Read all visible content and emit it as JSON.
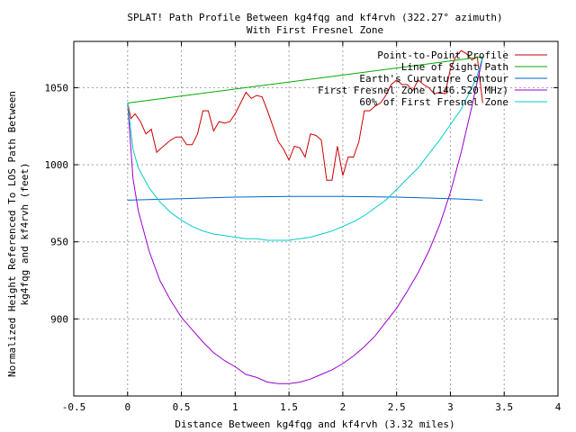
{
  "chart_data": {
    "type": "line",
    "title": "SPLAT! Path Profile Between kg4fqg and kf4rvh (322.27° azimuth)",
    "subtitle": "With First Fresnel Zone",
    "xlabel": "Distance Between kg4fqg and kf4rvh (3.32 miles)",
    "ylabel_line1": "Normalized Height Referenced To LOS Path Between",
    "ylabel_line2": "kg4fqg and kf4rvh (feet)",
    "xlim": [
      -0.5,
      4
    ],
    "ylim": [
      850,
      1080
    ],
    "x_ticks": [
      -0.5,
      0,
      0.5,
      1,
      1.5,
      2,
      2.5,
      3,
      3.5,
      4
    ],
    "x_tick_labels": [
      "-0.5",
      "0",
      "0.5",
      "1",
      "1.5",
      "2",
      "2.5",
      "3",
      "3.5",
      "4"
    ],
    "y_ticks": [
      900,
      950,
      1000,
      1050
    ],
    "y_tick_labels": [
      "900",
      "950",
      "1000",
      "1050"
    ],
    "grid": true,
    "legend_position": "top-right",
    "series": [
      {
        "name": "Point-to-Point Profile",
        "color": "#cc0000",
        "x": [
          0,
          0.03,
          0.07,
          0.12,
          0.17,
          0.22,
          0.27,
          0.3,
          0.35,
          0.4,
          0.45,
          0.5,
          0.55,
          0.6,
          0.65,
          0.7,
          0.75,
          0.8,
          0.85,
          0.9,
          0.95,
          1.0,
          1.05,
          1.1,
          1.15,
          1.2,
          1.25,
          1.3,
          1.35,
          1.4,
          1.45,
          1.5,
          1.55,
          1.6,
          1.65,
          1.7,
          1.75,
          1.8,
          1.85,
          1.9,
          1.95,
          2.0,
          2.05,
          2.1,
          2.15,
          2.2,
          2.25,
          2.3,
          2.35,
          2.4,
          2.45,
          2.5,
          2.55,
          2.6,
          2.65,
          2.7,
          2.75,
          2.8,
          2.85,
          2.9,
          2.95,
          3.0,
          3.05,
          3.1,
          3.15,
          3.2,
          3.25,
          3.3
        ],
        "y": [
          1040,
          1030,
          1033,
          1028,
          1020,
          1023,
          1008,
          1010,
          1013,
          1016,
          1018,
          1018,
          1013,
          1013,
          1020,
          1035,
          1035,
          1022,
          1028,
          1027,
          1028,
          1033,
          1040,
          1047,
          1043,
          1045,
          1044,
          1035,
          1025,
          1015,
          1010,
          1003,
          1012,
          1011,
          1005,
          1020,
          1019,
          1016,
          990,
          990,
          1012,
          993,
          1005,
          1005,
          1015,
          1035,
          1035,
          1038,
          1040,
          1045,
          1052,
          1055,
          1052,
          1052,
          1048,
          1055,
          1052,
          1050,
          1046,
          1047,
          1046,
          1062,
          1070,
          1074,
          1072,
          1068,
          1070,
          1040
        ]
      },
      {
        "name": "Line of Sight Path",
        "color": "#00aa00",
        "x": [
          0,
          3.3
        ],
        "y": [
          1040,
          1070
        ]
      },
      {
        "name": "Earth's Curvature Contour",
        "color": "#0066cc",
        "x": [
          0,
          0.5,
          1.0,
          1.5,
          2.0,
          2.5,
          3.0,
          3.3
        ],
        "y": [
          977,
          978,
          979,
          979.5,
          979.5,
          979,
          978,
          977
        ]
      },
      {
        "name": "First Fresnel Zone (146.520 MHz)",
        "color": "#9900cc",
        "x": [
          0,
          0.05,
          0.1,
          0.2,
          0.3,
          0.4,
          0.5,
          0.6,
          0.7,
          0.8,
          0.9,
          1.0,
          1.1,
          1.2,
          1.3,
          1.4,
          1.5,
          1.6,
          1.7,
          1.8,
          1.9,
          2.0,
          2.1,
          2.2,
          2.3,
          2.4,
          2.5,
          2.6,
          2.7,
          2.8,
          2.9,
          3.0,
          3.1,
          3.2,
          3.25,
          3.28,
          3.3
        ],
        "y": [
          1040,
          991,
          970,
          944,
          925,
          912,
          901,
          893,
          885,
          878,
          873,
          869,
          864,
          862,
          859,
          858,
          858,
          859,
          861,
          864,
          867,
          871,
          876,
          882,
          889,
          898,
          907,
          918,
          930,
          944,
          961,
          982,
          1008,
          1038,
          1054,
          1063,
          1070
        ]
      },
      {
        "name": "60% of First Fresnel Zone",
        "color": "#00cccc",
        "x": [
          0,
          0.05,
          0.1,
          0.2,
          0.3,
          0.4,
          0.5,
          0.6,
          0.7,
          0.8,
          0.9,
          1.0,
          1.1,
          1.2,
          1.3,
          1.4,
          1.5,
          1.6,
          1.7,
          1.8,
          1.9,
          2.0,
          2.1,
          2.2,
          2.3,
          2.4,
          2.5,
          2.6,
          2.7,
          2.8,
          2.9,
          3.0,
          3.1,
          3.2,
          3.25,
          3.3
        ],
        "y": [
          1040,
          1010,
          998,
          985,
          976,
          969,
          964,
          960,
          957,
          955,
          954,
          953,
          952,
          952,
          951,
          951,
          951,
          952,
          953,
          955,
          957,
          960,
          963,
          967,
          972,
          977,
          984,
          991,
          998,
          1007,
          1016,
          1026,
          1036,
          1050,
          1058,
          1070
        ]
      }
    ]
  }
}
